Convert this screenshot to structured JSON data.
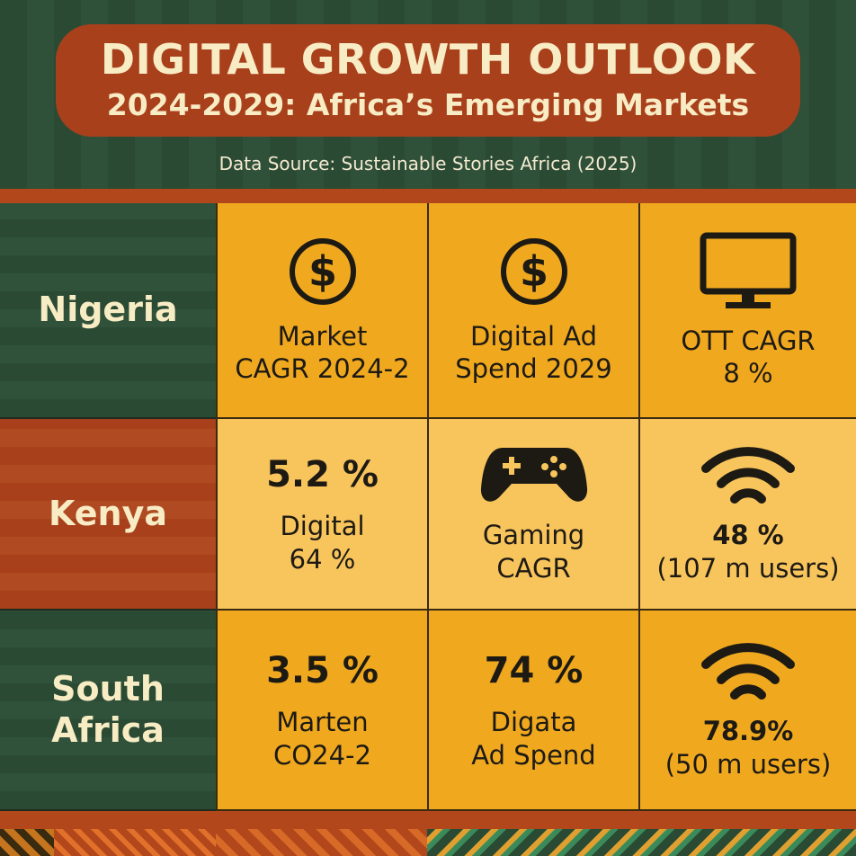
{
  "header": {
    "title": "DIGITAL GROWTH OUTLOOK",
    "subtitle": "2024-2029: Africa’s Emerging Markets",
    "source": "Data Source: Sustainable Stories Africa (2025)"
  },
  "colors": {
    "green": "#2b4a34",
    "rust": "#a9401c",
    "gold": "#f0a91f",
    "light_gold": "#f8c45c",
    "cream": "#f8ecc4"
  },
  "rows": [
    {
      "country": "Nigeria",
      "cells": [
        {
          "icon": "dollar-icon",
          "lines": [
            "Market",
            "CAGR 2024-2"
          ]
        },
        {
          "icon": "dollar-icon",
          "lines": [
            "Digital Ad",
            "Spend 2029"
          ]
        },
        {
          "icon": "monitor-icon",
          "lines": [
            "OTT CAGR",
            "8 %"
          ]
        }
      ]
    },
    {
      "country": "Kenya",
      "cells": [
        {
          "value": "5.2 %",
          "lines": [
            "Digital",
            "64 %"
          ]
        },
        {
          "icon": "gamepad-icon",
          "lines": [
            "Gaming",
            "CAGR"
          ]
        },
        {
          "icon": "wifi-icon",
          "lines": [
            "48 %",
            "(107 m users)"
          ]
        }
      ]
    },
    {
      "country": "South Africa",
      "cells": [
        {
          "value": "3.5 %",
          "lines": [
            "Marten",
            "CO24-2"
          ]
        },
        {
          "value": "74 %",
          "lines": [
            "Digata",
            "Ad Spend"
          ]
        },
        {
          "icon": "wifi-icon",
          "lines": [
            "78.9%",
            "(50 m users)"
          ]
        }
      ]
    }
  ]
}
